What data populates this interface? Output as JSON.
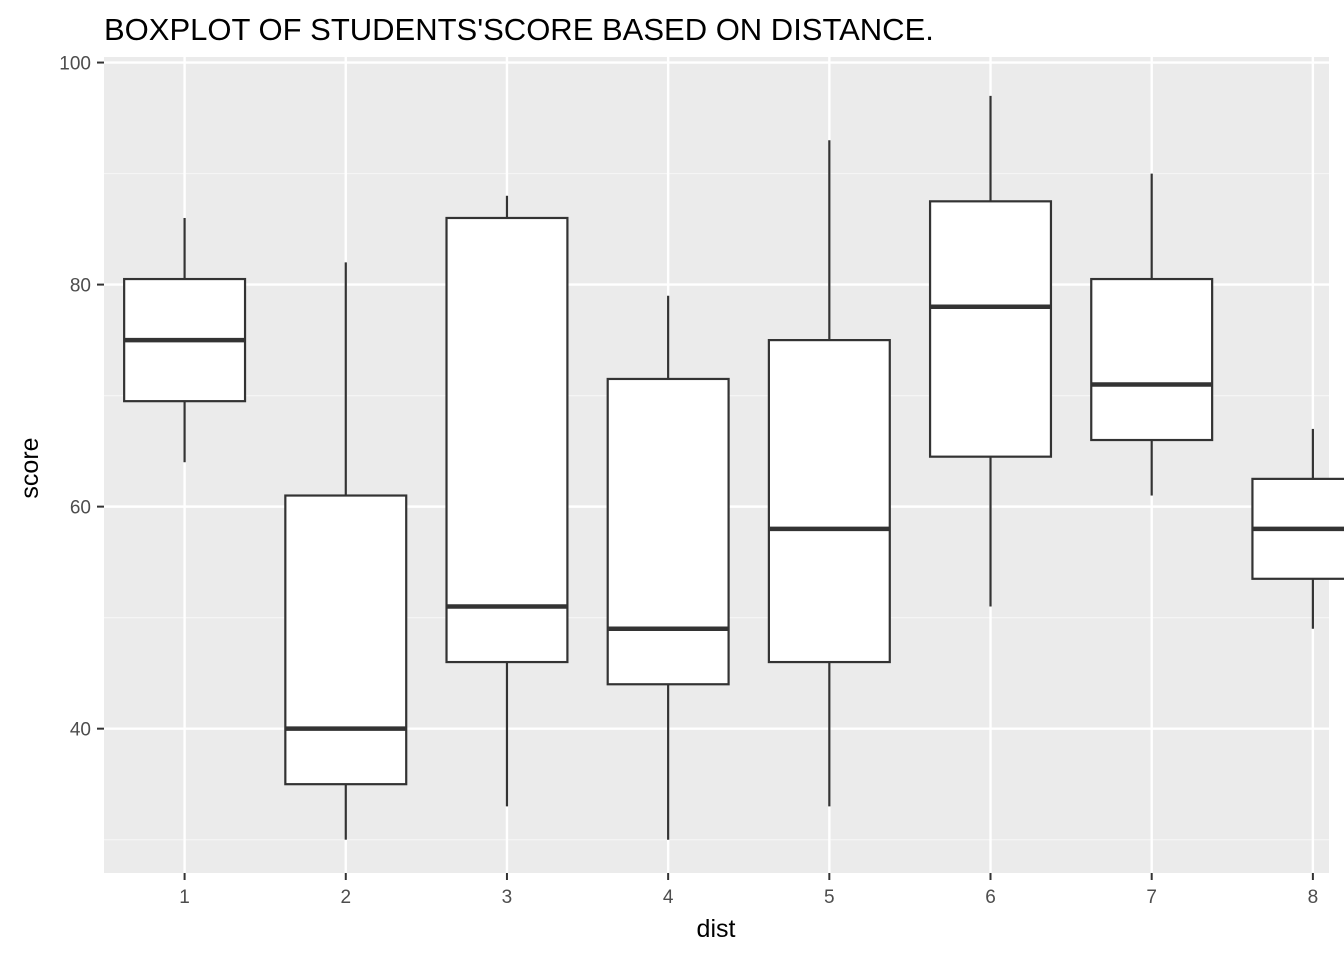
{
  "chart_data": {
    "type": "boxplot",
    "title": "BOXPLOT OF STUDENTS'SCORE BASED ON DISTANCE.",
    "xlabel": "dist",
    "ylabel": "score",
    "ylim": [
      27,
      100.5
    ],
    "y_ticks": [
      40,
      60,
      80,
      100
    ],
    "y_minor_ticks": [
      30,
      50,
      70,
      90
    ],
    "grid": true,
    "legend": "none",
    "categories": [
      "1",
      "2",
      "3",
      "4",
      "5",
      "6",
      "7",
      "8"
    ],
    "boxes": [
      {
        "category": "1",
        "min": 64,
        "q1": 69.5,
        "median": 75,
        "q3": 80.5,
        "max": 86
      },
      {
        "category": "2",
        "min": 30,
        "q1": 35,
        "median": 40,
        "q3": 61,
        "max": 82
      },
      {
        "category": "3",
        "min": 33,
        "q1": 46,
        "median": 51,
        "q3": 86,
        "max": 88
      },
      {
        "category": "4",
        "min": 30,
        "q1": 44,
        "median": 49,
        "q3": 71.5,
        "max": 79
      },
      {
        "category": "5",
        "min": 33,
        "q1": 46,
        "median": 58,
        "q3": 75,
        "max": 93
      },
      {
        "category": "6",
        "min": 51,
        "q1": 64.5,
        "median": 78,
        "q3": 87.5,
        "max": 97
      },
      {
        "category": "7",
        "min": 61,
        "q1": 66,
        "median": 71,
        "q3": 80.5,
        "max": 90
      },
      {
        "category": "8",
        "min": 49,
        "q1": 53.5,
        "median": 58,
        "q3": 62.5,
        "max": 67
      }
    ],
    "colors": {
      "panel_background": "#ebebeb",
      "grid_major": "#ffffff",
      "grid_minor": "#f5f5f5",
      "box_fill": "#ffffff",
      "box_stroke": "#333333",
      "tick_text": "#4d4d4d",
      "tick_mark": "#333333"
    }
  }
}
